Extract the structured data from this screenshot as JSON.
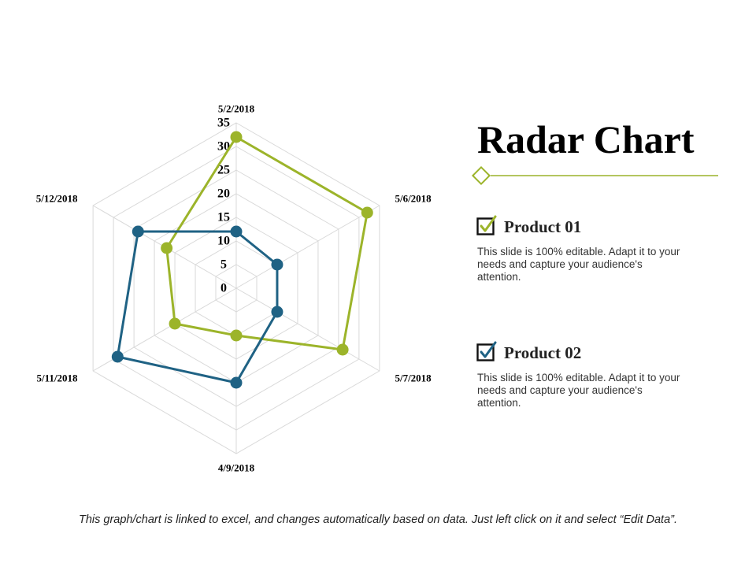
{
  "colors": {
    "product1": "#9cb42a",
    "product2": "#1f6284",
    "grid": "#d9d9d9"
  },
  "title": "Radar Chart",
  "legend": [
    {
      "name": "Product 01",
      "desc": "This slide is 100% editable. Adapt it to your needs and capture your audience's attention.",
      "icon": "checkbox-check-icon"
    },
    {
      "name": "Product 02",
      "desc": "This slide is 100% editable. Adapt it to your needs and capture your audience's attention.",
      "icon": "checkbox-check-icon"
    }
  ],
  "footer": "This graph/chart is linked to excel, and changes automatically based on data. Just left click on it and select “Edit Data”.",
  "chart_data": {
    "type": "radar",
    "categories": [
      "5/2/2018",
      "5/6/2018",
      "5/7/2018",
      "4/9/2018",
      "5/11/2018",
      "5/12/2018"
    ],
    "ticks": [
      "0",
      "5",
      "10",
      "15",
      "20",
      "25",
      "30",
      "35"
    ],
    "rlim": [
      0,
      35
    ],
    "series": [
      {
        "name": "Product 01",
        "values": [
          32,
          32,
          26,
          10,
          15,
          17
        ]
      },
      {
        "name": "Product 02",
        "values": [
          12,
          10,
          10,
          20,
          29,
          24
        ]
      }
    ]
  }
}
